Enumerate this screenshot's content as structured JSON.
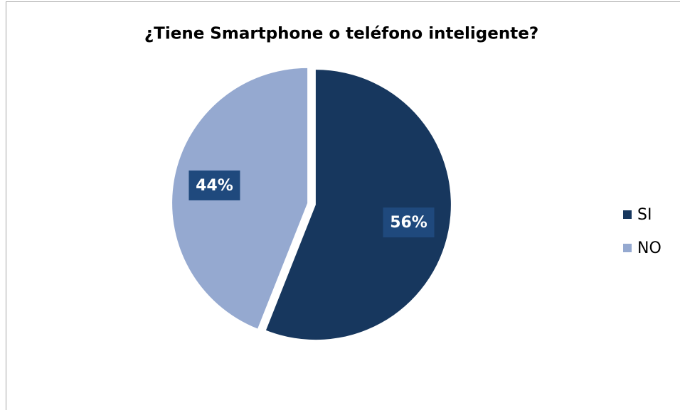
{
  "chart_data": {
    "type": "pie",
    "title": "¿Tiene Smartphone o teléfono inteligente?",
    "categories": [
      "SI",
      "NO"
    ],
    "values": [
      56,
      44
    ],
    "value_labels": [
      "56%",
      "44%"
    ],
    "colors": [
      "#17375e",
      "#95a9d0"
    ],
    "legend": "right"
  }
}
